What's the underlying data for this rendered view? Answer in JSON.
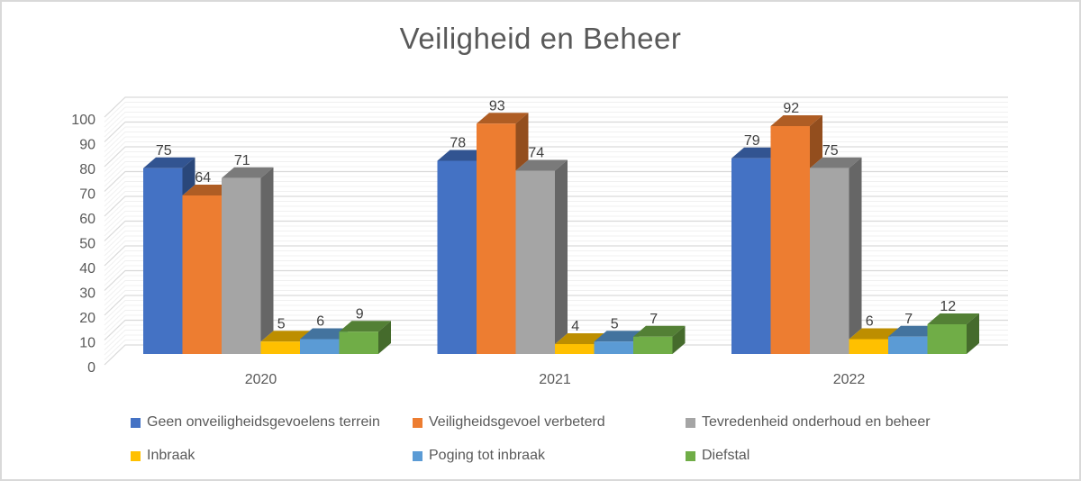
{
  "title": "Veiligheid en Beheer",
  "chart_data": {
    "type": "bar",
    "style": "3d-clustered-column",
    "title": "Veiligheid en Beheer",
    "categories": [
      "2020",
      "2021",
      "2022"
    ],
    "series": [
      {
        "name": "Geen onveiligheidsgevoelens terrein",
        "color": "#4472C4",
        "values": [
          75,
          78,
          79
        ]
      },
      {
        "name": "Veiligheidsgevoel verbeterd",
        "color": "#ED7D31",
        "values": [
          64,
          93,
          92
        ]
      },
      {
        "name": "Tevredenheid onderhoud en beheer",
        "color": "#A5A5A5",
        "values": [
          71,
          74,
          75
        ]
      },
      {
        "name": "Inbraak",
        "color": "#FFC000",
        "values": [
          5,
          4,
          6
        ]
      },
      {
        "name": "Poging tot inbraak",
        "color": "#5B9BD5",
        "values": [
          6,
          5,
          7
        ]
      },
      {
        "name": "Diefstal",
        "color": "#70AD47",
        "values": [
          9,
          7,
          12
        ]
      }
    ],
    "y_axis": {
      "min": 0,
      "max": 100,
      "major_step": 10,
      "minor_step": 2,
      "tick_labels": [
        "0",
        "10",
        "20",
        "30",
        "40",
        "50",
        "60",
        "70",
        "80",
        "90",
        "100"
      ]
    },
    "legend_position": "bottom",
    "grid": true,
    "data_labels": true
  },
  "colors": {
    "title_text": "#595959",
    "axis_text": "#595959",
    "data_label_text": "#404040",
    "major_gridline": "#d9d9d9",
    "minor_gridline": "#f0f0f0",
    "border": "#d9d9d9",
    "background": "#ffffff"
  }
}
